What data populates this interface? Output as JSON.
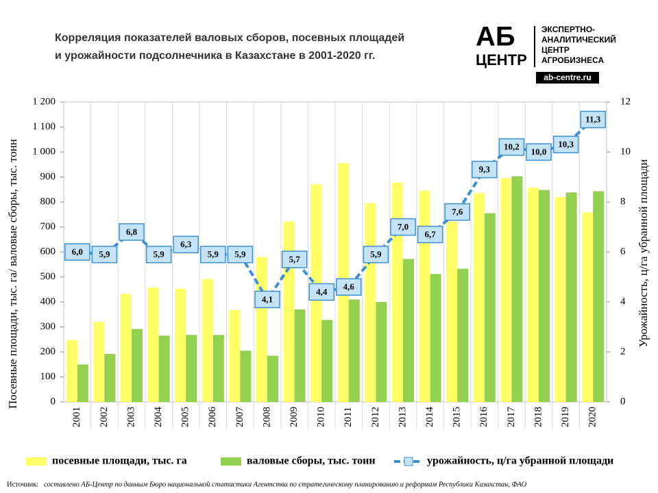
{
  "chart_data": {
    "type": "bar",
    "title": [
      "Корреляция показателей валовых сборов, посевных площадей",
      "и урожайности подсолнечника  в Казахстане в 2001-2020 гг."
    ],
    "ylabel": "Посевные площади, тыс. га/ валовые сборы, тыс. тонн",
    "y2label": "Урожайность, ц/га убранной площади",
    "categories": [
      "2001",
      "2002",
      "2003",
      "2004",
      "2005",
      "2006",
      "2007",
      "2008",
      "2009",
      "2010",
      "2011",
      "2012",
      "2013",
      "2014",
      "2015",
      "2016",
      "2017",
      "2018",
      "2019",
      "2020"
    ],
    "series": [
      {
        "name": "посевные площади, тыс. га",
        "type": "bar",
        "color": "#ffff66",
        "values": [
          248,
          320,
          432,
          457,
          453,
          492,
          367,
          580,
          722,
          870,
          955,
          795,
          877,
          845,
          722,
          835,
          895,
          858,
          820,
          758
        ]
      },
      {
        "name": "валовые сборы, тыс. тонн",
        "type": "bar",
        "color": "#92d050",
        "values": [
          150,
          192,
          292,
          265,
          268,
          268,
          205,
          185,
          370,
          328,
          410,
          400,
          572,
          512,
          533,
          755,
          903,
          848,
          838,
          843
        ]
      },
      {
        "name": "урожайность, ц/га убранной площади",
        "type": "line",
        "axis": "y2",
        "color": "#3d8fd1",
        "values": [
          6.0,
          5.9,
          6.8,
          5.9,
          6.3,
          5.9,
          5.9,
          4.1,
          5.7,
          4.4,
          4.6,
          5.9,
          7.0,
          6.7,
          7.6,
          9.3,
          10.2,
          10.0,
          10.3,
          11.3
        ],
        "value_labels": [
          "6,0",
          "5,9",
          "6,8",
          "5,9",
          "6,3",
          "5,9",
          "5,9",
          "4,1",
          "5,7",
          "4,4",
          "4,6",
          "5,9",
          "7,0",
          "6,7",
          "7,6",
          "9,3",
          "10,2",
          "10,0",
          "10,3",
          "11,3"
        ]
      }
    ],
    "ylim": [
      0,
      1200
    ],
    "yticks": [
      0,
      100,
      200,
      300,
      400,
      500,
      600,
      700,
      800,
      900,
      {
        "value": 1000,
        "label": "1 000"
      },
      {
        "value": 1100,
        "label": "1 100"
      },
      {
        "value": 1200,
        "label": "1 200"
      }
    ],
    "y2lim": [
      0,
      12
    ],
    "y2ticks": [
      0,
      2,
      4,
      6,
      8,
      10,
      12
    ],
    "legend": "bottom"
  },
  "logo": {
    "name": "АБ",
    "name2": "ЦЕНТР",
    "text": [
      "ЭКСПЕРТНО-",
      "АНАЛИТИЧЕСКИЙ",
      "ЦЕНТР",
      "АГРОБИЗНЕСА"
    ],
    "url": "ab-centre.ru"
  },
  "source": {
    "label": "Источник:",
    "text": "составлено АБ-Центр по данным Бюро национальной статистики Агентства по стратегическому планированию и реформам Республики Казахстан, ФАО"
  }
}
